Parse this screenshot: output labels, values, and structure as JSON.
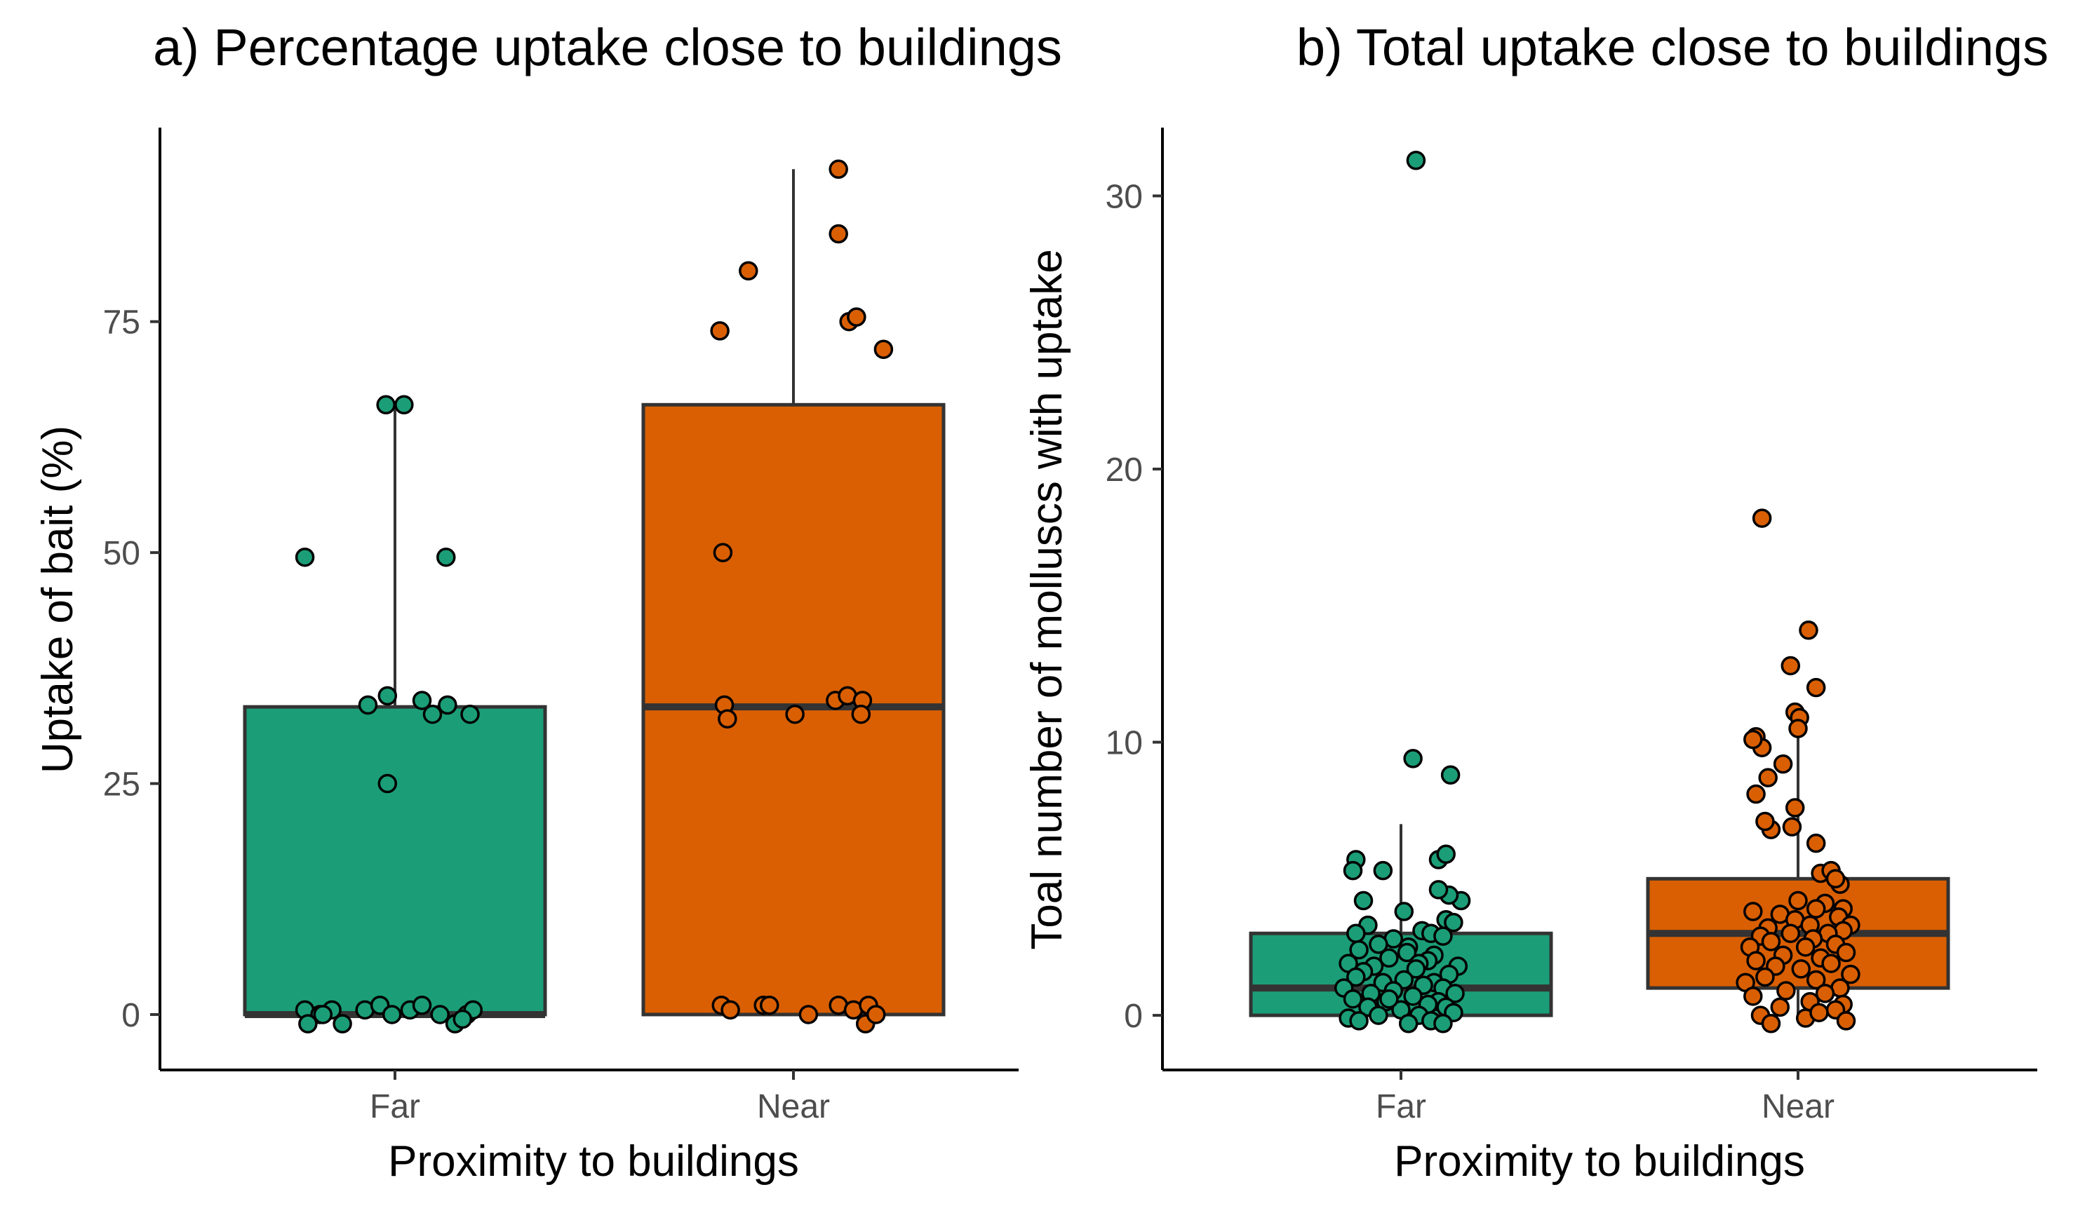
{
  "chart_data": [
    {
      "type": "box",
      "title": "a) Percentage uptake close to buildings",
      "xlabel": "Proximity to buildings",
      "ylabel": "Uptake of bait (%)",
      "categories": [
        "Far",
        "Near"
      ],
      "y_ticks": [
        0,
        25,
        50,
        75
      ],
      "y_tick_labels": [
        "0",
        "25",
        "50",
        "75"
      ],
      "ylim": [
        -6,
        96
      ],
      "colors": {
        "Far": "#1b9e77",
        "Near": "#d95f02"
      },
      "boxes": [
        {
          "category": "Far",
          "q1": 0,
          "median": 0,
          "q3": 33.3,
          "whisker_low": 0,
          "whisker_high": 66
        },
        {
          "category": "Near",
          "q1": 0,
          "median": 33.3,
          "q3": 66,
          "whisker_low": 0,
          "whisker_high": 91.5
        }
      ],
      "points": [
        {
          "category": "Far",
          "x": [
            -0.06,
            0.06,
            -0.6,
            0.34,
            -0.05,
            0.18,
            0.35,
            0.25,
            -0.05,
            0.5,
            -0.18,
            -0.6,
            -0.5,
            -0.58,
            -0.42,
            -0.48,
            -0.35,
            -0.2,
            -0.1,
            -0.02,
            0.1,
            0.18,
            0.3,
            0.4,
            0.48,
            0.52,
            0.45
          ],
          "y": [
            66,
            66,
            49.5,
            49.5,
            34.5,
            34,
            33.5,
            32.5,
            25,
            32.5,
            33.5,
            0.5,
            0,
            -1,
            0.5,
            0,
            -1,
            0.5,
            1,
            0,
            0.5,
            1,
            0,
            -1,
            0,
            0.5,
            -0.5
          ]
        },
        {
          "category": "Near",
          "x": [
            0.3,
            0.3,
            -0.3,
            -0.49,
            0.37,
            0.42,
            0.6,
            -0.47,
            -0.46,
            -0.44,
            0.01,
            0.28,
            0.36,
            0.46,
            0.45,
            -0.48,
            -0.42,
            -0.2,
            -0.16,
            0.1,
            0.3,
            0.4,
            0.48,
            0.5,
            0.55
          ],
          "y": [
            91.5,
            84.5,
            80.5,
            74,
            75,
            75.5,
            72,
            50,
            33.5,
            32,
            32.5,
            34,
            34.5,
            34,
            32.5,
            1,
            0.5,
            1,
            1,
            0,
            1,
            0.5,
            -1,
            1,
            0
          ]
        }
      ]
    },
    {
      "type": "box",
      "title": "b) Total uptake close to buildings",
      "xlabel": "Proximity to buildings",
      "ylabel": "Toal number of molluscs with uptake",
      "categories": [
        "Far",
        "Near"
      ],
      "y_ticks": [
        0,
        10,
        20,
        30
      ],
      "y_tick_labels": [
        "0",
        "10",
        "20",
        "30"
      ],
      "ylim": [
        -2,
        32.5
      ],
      "colors": {
        "Far": "#1b9e77",
        "Near": "#d95f02"
      },
      "boxes": [
        {
          "category": "Far",
          "q1": 0,
          "median": 1,
          "q3": 3,
          "whisker_low": 0,
          "whisker_high": 7
        },
        {
          "category": "Near",
          "q1": 1,
          "median": 3,
          "q3": 5,
          "whisker_low": 0,
          "whisker_high": 11
        }
      ],
      "points": [
        {
          "category": "Far",
          "x": [
            0.1,
            0.08,
            0.33,
            -0.3,
            0.25,
            0.3,
            -0.12,
            -0.32,
            0.4,
            0.32,
            0.25,
            -0.25,
            0.02,
            0.3,
            -0.22,
            0.35,
            0.14,
            -0.3,
            0.2,
            0.28,
            -0.05,
            -0.15,
            0.05,
            -0.28,
            0.04,
            0.22,
            0.18,
            -0.08,
            0.12,
            -0.35,
            -0.18,
            0.38,
            0.1,
            -0.25,
            0.32,
            -0.3,
            0.02,
            0.22,
            -0.12,
            0.15,
            -0.38,
            0.28,
            -0.05,
            0.36,
            -0.2,
            0.08,
            -0.32,
            0.25,
            -0.1,
            0.18,
            0.3,
            -0.22,
            0.0,
            0.35,
            -0.15,
            0.12,
            -0.35,
            0.2,
            -0.28,
            0.05,
            0.28,
            -0.08
          ],
          "y": [
            31.3,
            9.4,
            8.8,
            5.7,
            5.7,
            5.9,
            5.3,
            5.3,
            4.2,
            4.4,
            4.6,
            4.2,
            3.8,
            3.5,
            3.3,
            3.4,
            3.1,
            3,
            3,
            2.9,
            2.8,
            2.6,
            2.5,
            2.4,
            2.3,
            2.2,
            2,
            2.1,
            1.9,
            1.9,
            1.8,
            1.8,
            1.7,
            1.6,
            1.5,
            1.4,
            1.3,
            1.2,
            1.2,
            1.1,
            1,
            1,
            0.9,
            0.8,
            0.8,
            0.7,
            0.6,
            0.5,
            0.5,
            0.4,
            0.3,
            0.3,
            0.2,
            0.1,
            0,
            0,
            -0.1,
            -0.2,
            -0.2,
            -0.3,
            -0.3,
            0.6
          ]
        },
        {
          "category": "Near",
          "x": [
            -0.24,
            0.07,
            0.12,
            -0.05,
            -0.02,
            -0.28,
            -0.24,
            -0.1,
            -0.2,
            -0.04,
            -0.18,
            -0.22,
            0.01,
            0.0,
            0.12,
            -0.3,
            0.15,
            0.22,
            0.28,
            0.25,
            -0.28,
            0.3,
            0.0,
            0.18,
            -0.3,
            0.12,
            -0.12,
            0.27,
            -0.02,
            0.35,
            0.08,
            -0.2,
            0.3,
            -0.05,
            0.2,
            -0.25,
            0.1,
            -0.18,
            0.25,
            -0.32,
            0.05,
            0.32,
            -0.1,
            0.15,
            -0.28,
            0.22,
            -0.15,
            0.02,
            0.35,
            -0.22,
            0.12,
            -0.35,
            0.28,
            -0.08,
            0.18,
            -0.3,
            0.08,
            0.3,
            -0.12,
            0.25,
            -0.25,
            0.05,
            0.32,
            -0.18,
            0.14,
            -0.02
          ],
          "y": [
            18.2,
            14.1,
            12,
            12.8,
            11.1,
            10.2,
            9.8,
            9.2,
            8.7,
            6.9,
            6.8,
            7.1,
            10.9,
            10.5,
            6.3,
            10.1,
            5.2,
            5.3,
            4.8,
            5,
            8.1,
            3.9,
            4.2,
            4.1,
            3.8,
            3.9,
            3.7,
            3.6,
            3.5,
            3.3,
            3.3,
            3.2,
            3.1,
            3,
            3,
            2.9,
            2.8,
            2.7,
            2.6,
            2.5,
            2.5,
            2.3,
            2.2,
            2.1,
            2,
            1.9,
            1.8,
            1.7,
            1.5,
            1.4,
            1.3,
            1.2,
            1,
            0.9,
            0.8,
            0.7,
            0.5,
            0.4,
            0.3,
            0.2,
            0,
            -0.1,
            -0.2,
            -0.3,
            0.1,
            7.6
          ]
        }
      ]
    }
  ]
}
